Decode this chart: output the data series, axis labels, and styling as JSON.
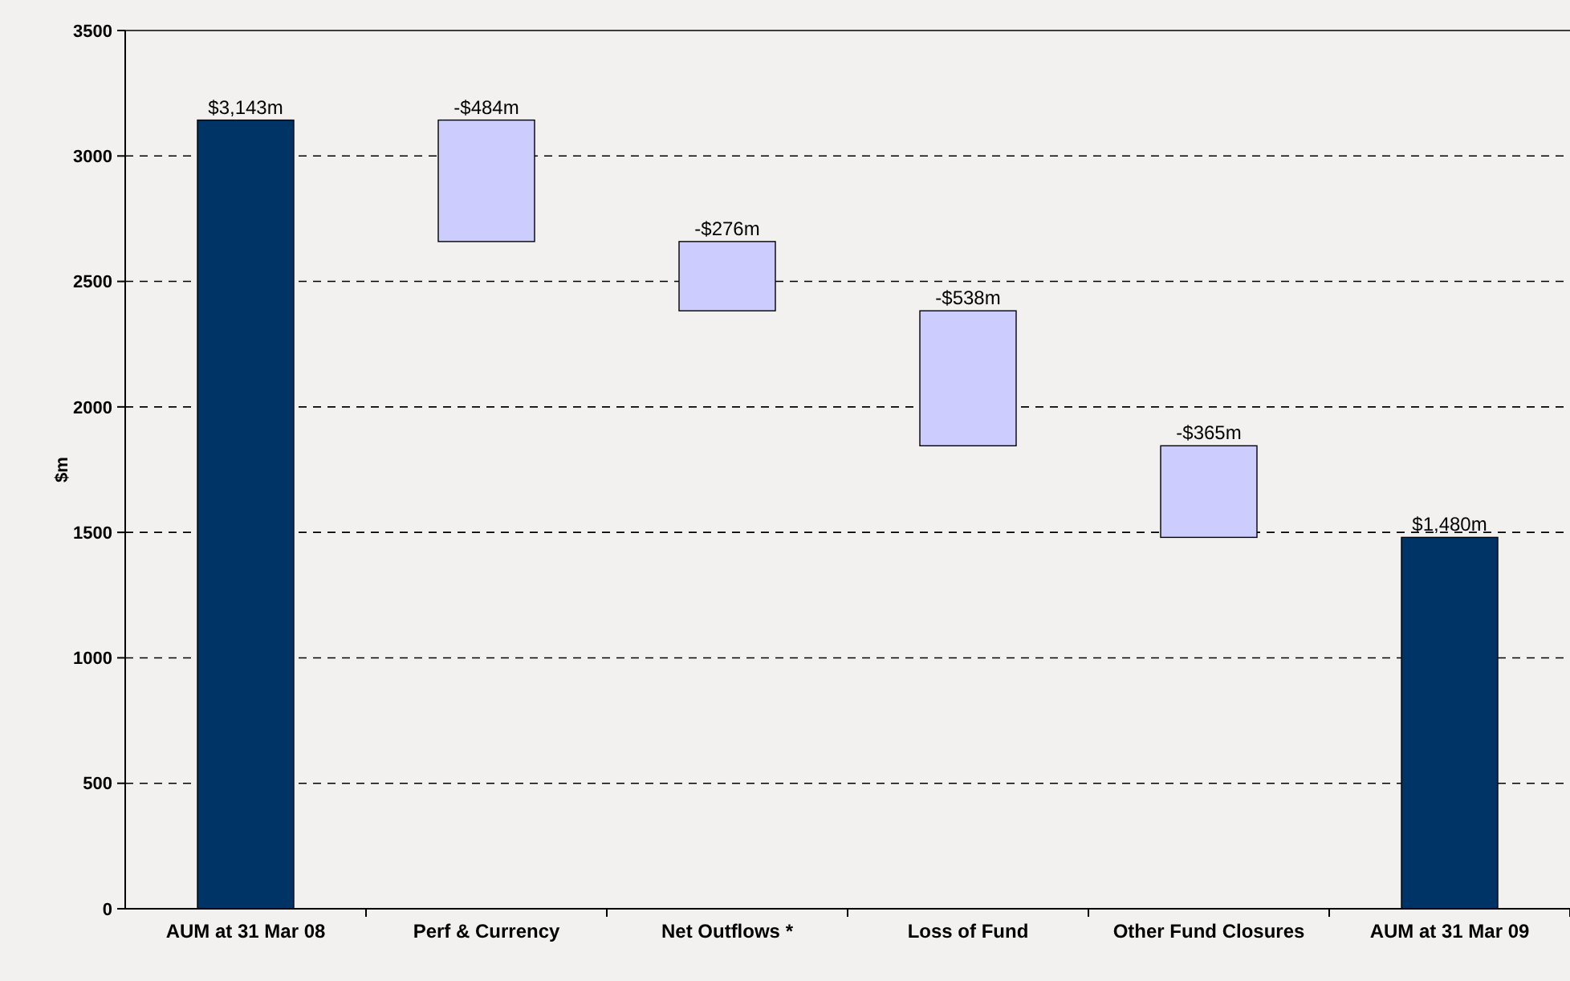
{
  "chart_data": {
    "type": "bar",
    "ylabel": "$m",
    "categories": [
      "AUM at 31 Mar 08",
      "Perf & Currency",
      "Net Outflows *",
      "Loss of Fund",
      "Other Fund Closures",
      "AUM at 31 Mar 09"
    ],
    "values": [
      3143,
      -484,
      -276,
      -538,
      -365,
      1480
    ],
    "base": [
      0,
      3143,
      2659,
      2383,
      1845,
      0
    ],
    "colors": [
      "#003366",
      "#ccccff",
      "#ccccff",
      "#ccccff",
      "#ccccff",
      "#003366"
    ],
    "value_labels": [
      "$3,143m",
      "-$484m",
      "-$276m",
      "-$538m",
      "-$365m",
      "$1,480m"
    ],
    "ylim": [
      0,
      3500
    ],
    "yticks": [
      0,
      500,
      1000,
      1500,
      2000,
      2500,
      3000,
      3500
    ],
    "grid": "y"
  }
}
